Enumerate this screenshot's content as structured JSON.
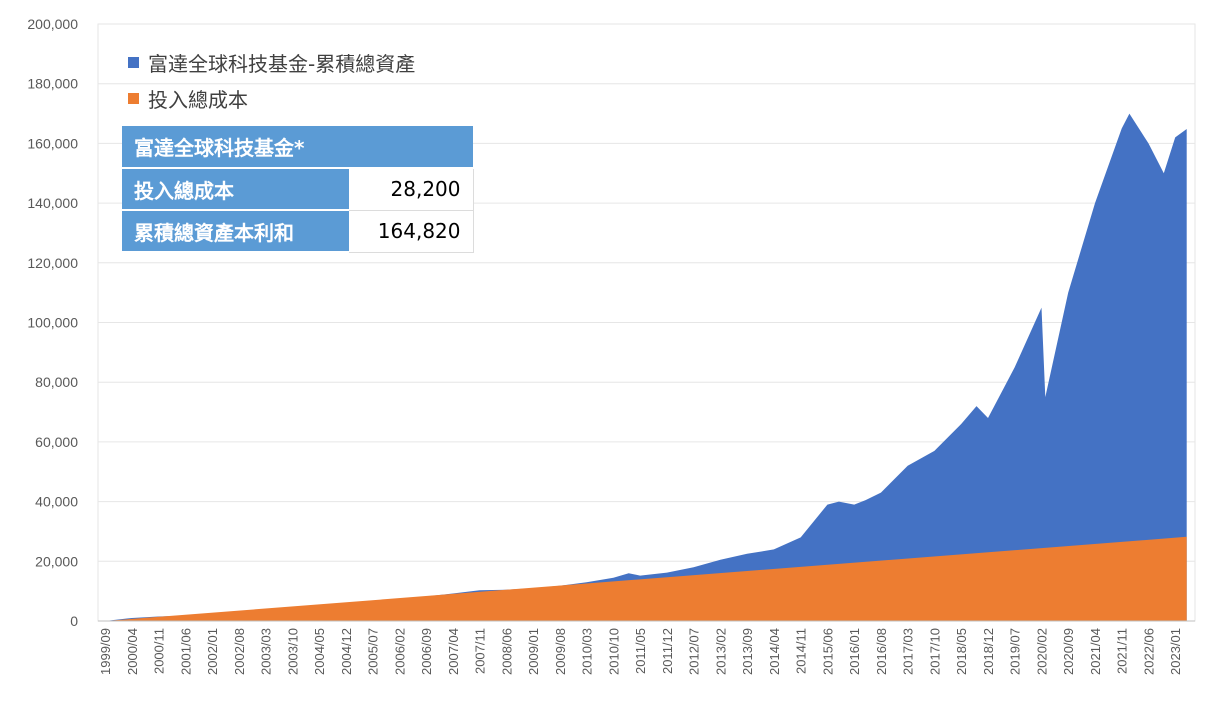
{
  "chart_data": {
    "type": "area",
    "ylim": [
      0,
      200000
    ],
    "y_ticks": [
      "0",
      "20,000",
      "40,000",
      "60,000",
      "80,000",
      "100,000",
      "120,000",
      "140,000",
      "160,000",
      "180,000",
      "200,000"
    ],
    "x_ticks": [
      "1999/09",
      "2000/04",
      "2000/11",
      "2001/06",
      "2002/01",
      "2002/08",
      "2003/03",
      "2003/10",
      "2004/05",
      "2004/12",
      "2005/07",
      "2006/02",
      "2006/09",
      "2007/04",
      "2007/11",
      "2008/06",
      "2009/01",
      "2009/08",
      "2010/03",
      "2010/10",
      "2011/05",
      "2011/12",
      "2012/07",
      "2013/02",
      "2013/09",
      "2014/04",
      "2014/11",
      "2015/06",
      "2016/01",
      "2016/08",
      "2017/03",
      "2017/10",
      "2018/05",
      "2018/12",
      "2019/07",
      "2020/02",
      "2020/09",
      "2021/04",
      "2021/11",
      "2022/06",
      "2023/01"
    ],
    "series": [
      {
        "name": "富達全球科技基金-累積總資產",
        "color": "#4472c4",
        "x": [
          "1999/09",
          "2000/04",
          "2000/11",
          "2001/06",
          "2002/01",
          "2002/08",
          "2003/03",
          "2003/10",
          "2004/05",
          "2004/12",
          "2005/07",
          "2006/02",
          "2006/09",
          "2007/04",
          "2007/11",
          "2008/06",
          "2009/01",
          "2009/08",
          "2010/03",
          "2010/10",
          "2011/02",
          "2011/05",
          "2011/12",
          "2012/07",
          "2013/02",
          "2013/09",
          "2014/04",
          "2014/11",
          "2015/06",
          "2015/09",
          "2016/01",
          "2016/04",
          "2016/08",
          "2017/03",
          "2017/10",
          "2018/05",
          "2018/09",
          "2018/12",
          "2019/07",
          "2020/02",
          "2020/03",
          "2020/09",
          "2021/04",
          "2021/11",
          "2022/01",
          "2022/06",
          "2022/10",
          "2023/01",
          "2023/04"
        ],
        "values": [
          0,
          1000,
          1500,
          1800,
          2500,
          3000,
          3700,
          4600,
          5200,
          6000,
          6800,
          7500,
          8200,
          9200,
          10300,
          10500,
          11000,
          11800,
          13000,
          14500,
          16000,
          15200,
          16200,
          18000,
          20500,
          22500,
          24000,
          28000,
          39000,
          40000,
          39000,
          40500,
          43000,
          52000,
          57000,
          66000,
          72000,
          68000,
          85000,
          105000,
          75000,
          110000,
          140000,
          165000,
          170000,
          160000,
          150000,
          162000,
          164820
        ]
      },
      {
        "name": "投入總成本",
        "color": "#ed7d31",
        "x": [
          "1999/09",
          "2023/04"
        ],
        "values": [
          0,
          28200
        ]
      }
    ]
  },
  "summary_table": {
    "title": "富達全球科技基金*",
    "rows": [
      {
        "label": "投入總成本",
        "value": "28,200"
      },
      {
        "label": "累積總資產本利和",
        "value": "164,820"
      }
    ]
  }
}
